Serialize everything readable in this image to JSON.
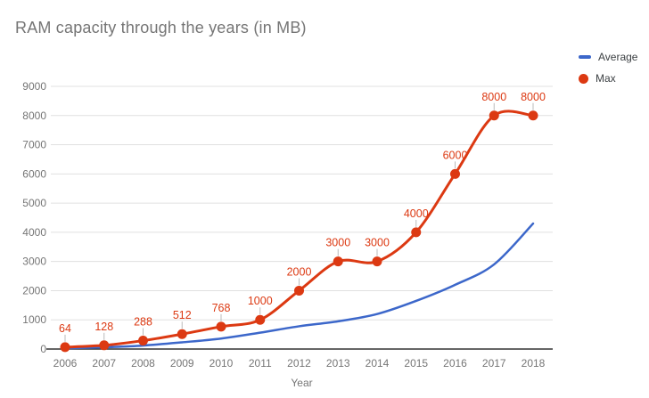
{
  "title": "RAM capacity through the years (in MB)",
  "legend": {
    "position": "top-right",
    "items": [
      {
        "label": "Average",
        "color": "#3c67ca",
        "marker": "line"
      },
      {
        "label": "Max",
        "color": "#dc3912",
        "marker": "circle"
      }
    ]
  },
  "chart_data": {
    "type": "line",
    "title": "RAM capacity through the years (in MB)",
    "x": [
      2006,
      2007,
      2008,
      2009,
      2010,
      2011,
      2012,
      2013,
      2014,
      2015,
      2016,
      2017,
      2018
    ],
    "xlabel": "Year",
    "ylabel": "",
    "ylim": [
      0,
      9000
    ],
    "yticks": [
      0,
      1000,
      2000,
      3000,
      4000,
      5000,
      6000,
      7000,
      8000,
      9000
    ],
    "grid": true,
    "smooth": true,
    "legend_position": "top-right",
    "series": [
      {
        "name": "Average",
        "color": "#3c67ca",
        "point_markers": false,
        "data_labels": false,
        "values": [
          25,
          60,
          120,
          230,
          360,
          560,
          780,
          950,
          1200,
          1650,
          2200,
          2900,
          4300
        ]
      },
      {
        "name": "Max",
        "color": "#dc3912",
        "point_markers": true,
        "data_labels": true,
        "values": [
          64,
          128,
          288,
          512,
          768,
          1000,
          2000,
          3000,
          3000,
          4000,
          6000,
          8000,
          8000
        ],
        "labels": [
          "64",
          "128",
          "288",
          "512",
          "768",
          "1000",
          "2000",
          "3000",
          "3000",
          "4000",
          "6000",
          "8000",
          "8000"
        ]
      }
    ]
  },
  "colors": {
    "title_text": "#757575",
    "tick_text": "#757575",
    "legend_text": "#3c4043",
    "gridline": "#e0e0e0",
    "baseline": "#333333",
    "annotation_stem": "#bbbbbb"
  }
}
